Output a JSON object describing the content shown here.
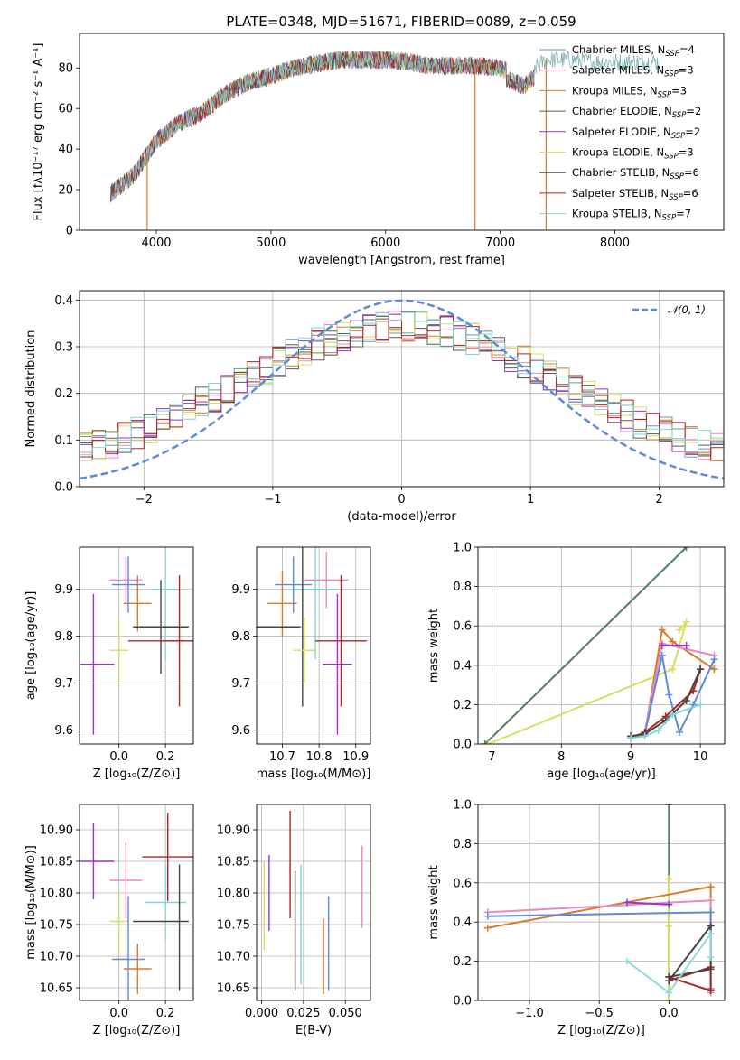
{
  "figure": {
    "title": "PLATE=0348, MJD=51671, FIBERID=0089, z=0.059",
    "colors": [
      "#5f9ea0",
      "#e78ac3",
      "#d97a2a",
      "#4f5f4f",
      "#9932cc",
      "#d4e157",
      "#444444",
      "#b22222",
      "#7fd6d6"
    ]
  },
  "chart_data": [
    {
      "id": "spectrum",
      "type": "line",
      "title": "PLATE=0348, MJD=51671, FIBERID=0089, z=0.059",
      "xlabel": "wavelength [Angstrom, rest frame]",
      "ylabel": "Flux [fλ10⁻¹⁷ erg cm⁻² s⁻¹ A⁻¹]",
      "xlim": [
        3330,
        8950
      ],
      "ylim": [
        0,
        97
      ],
      "xticks": [
        4000,
        5000,
        6000,
        7000,
        8000
      ],
      "yticks": [
        0,
        20,
        40,
        60,
        80
      ],
      "legend_position": "top-right",
      "series": [
        {
          "name": "Chabrier MILES, N_SSP=4",
          "color": "#5f9ea0"
        },
        {
          "name": "Salpeter MILES, N_SSP=3",
          "color": "#e78ac3"
        },
        {
          "name": "Kroupa MILES, N_SSP=3",
          "color": "#d97a2a"
        },
        {
          "name": "Chabrier ELODIE, N_SSP=2",
          "color": "#4f5f4f"
        },
        {
          "name": "Salpeter ELODIE, N_SSP=2",
          "color": "#9932cc"
        },
        {
          "name": "Kroupa ELODIE, N_SSP=3",
          "color": "#d4e157"
        },
        {
          "name": "Chabrier STELIB, N_SSP=6",
          "color": "#444444"
        },
        {
          "name": "Salpeter STELIB, N_SSP=6",
          "color": "#b22222"
        },
        {
          "name": "Kroupa STELIB, N_SSP=7",
          "color": "#7fd6d6"
        }
      ],
      "continuum": {
        "x": [
          3600,
          3800,
          4000,
          4200,
          4400,
          4600,
          4800,
          5000,
          5200,
          5400,
          5600,
          5800,
          6000,
          6200,
          6400,
          6600,
          6800,
          7000,
          7200,
          7400,
          7600,
          7800,
          8000,
          8200,
          8400
        ],
        "y": [
          18,
          27,
          44,
          53,
          58,
          67,
          73,
          76,
          80,
          82,
          84,
          84,
          84,
          83,
          81,
          81,
          81,
          80,
          75,
          84,
          84,
          83,
          83,
          83,
          83
        ]
      },
      "drops": [
        {
          "x": 3920,
          "y_end": 0,
          "color": "#d97a2a"
        },
        {
          "x": 6780,
          "y_end": 0,
          "color": "#d97a2a"
        },
        {
          "x": 7400,
          "y_end": 0,
          "color": "#d97a2a"
        }
      ]
    },
    {
      "id": "residuals",
      "type": "line",
      "xlabel": "(data-model)/error",
      "ylabel": "Normed distribution",
      "xlim": [
        -2.5,
        2.5
      ],
      "ylim": [
        0,
        0.42
      ],
      "xticks": [
        -2,
        -1,
        0,
        1,
        2
      ],
      "yticks": [
        0.0,
        0.1,
        0.2,
        0.3,
        0.4
      ],
      "grid": true,
      "legend_position": "top-right",
      "reference": {
        "name": "N(0,1)",
        "mean": 0,
        "std": 1,
        "color": "#5b8bd8"
      },
      "bin_width": 0.1
    },
    {
      "id": "age-vs-Z",
      "type": "scatter",
      "xlabel": "Z [log₁₀(Z/Z⊙)]",
      "ylabel": "age  [log₁₀(age/yr)]",
      "xlim": [
        -0.17,
        0.32
      ],
      "ylim": [
        9.57,
        9.99
      ],
      "xticks": [
        0.0,
        0.2
      ],
      "yticks": [
        9.6,
        9.7,
        9.8,
        9.9
      ],
      "grid": true,
      "points": [
        {
          "x": 0.03,
          "y": 9.92,
          "xerr": 0.07,
          "yerr": 0.05,
          "color": "#e78ac3"
        },
        {
          "x": 0.08,
          "y": 9.87,
          "xerr": 0.06,
          "yerr": 0.06,
          "color": "#d97a2a"
        },
        {
          "x": 0.04,
          "y": 9.91,
          "xerr": 0.07,
          "yerr": 0.06,
          "color": "#5b8bd8"
        },
        {
          "x": 0.2,
          "y": 9.9,
          "xerr": 0.06,
          "yerr": 0.15,
          "color": "#7fd6d6"
        },
        {
          "x": 0.18,
          "y": 9.82,
          "xerr": 0.12,
          "yerr": 0.1,
          "color": "#444444"
        },
        {
          "x": 0.26,
          "y": 9.79,
          "xerr": 0.06,
          "yerr": 0.14,
          "color": "#b22222"
        },
        {
          "x": 0.16,
          "y": 9.79,
          "xerr": 0.12,
          "yerr": 0.0,
          "color": "#b22222"
        },
        {
          "x": 0.0,
          "y": 9.77,
          "xerr": 0.04,
          "yerr": 0.07,
          "color": "#d4e157"
        },
        {
          "x": -0.11,
          "y": 9.74,
          "xerr": 0.09,
          "yerr": 0.15,
          "color": "#9932cc"
        }
      ]
    },
    {
      "id": "age-vs-mass",
      "type": "scatter",
      "xlabel": "mass [log₁₀(M/M⊙)]",
      "xlim": [
        10.63,
        10.94
      ],
      "ylim": [
        9.57,
        9.99
      ],
      "xticks": [
        10.7,
        10.8,
        10.9
      ],
      "yticks": [
        9.6,
        9.7,
        9.8,
        9.9
      ],
      "grid": true,
      "points": [
        {
          "x": 10.7,
          "y": 9.87,
          "xerr": 0.04,
          "yerr": 0.07,
          "color": "#d97a2a"
        },
        {
          "x": 10.73,
          "y": 9.91,
          "xerr": 0.05,
          "yerr": 0.06,
          "color": "#5b8bd8"
        },
        {
          "x": 10.82,
          "y": 9.92,
          "xerr": 0.06,
          "yerr": 0.06,
          "color": "#e78ac3"
        },
        {
          "x": 10.79,
          "y": 9.9,
          "xerr": 0.06,
          "yerr": 0.15,
          "color": "#7fd6d6"
        },
        {
          "x": 10.69,
          "y": 9.82,
          "xerr": 0.06,
          "yerr": 0.0,
          "color": "#444444"
        },
        {
          "x": 10.755,
          "y": 9.82,
          "xerr": 0.0,
          "yerr": 0.17,
          "color": "#444444"
        },
        {
          "x": 10.86,
          "y": 9.79,
          "xerr": 0.07,
          "yerr": 0.14,
          "color": "#b22222"
        },
        {
          "x": 10.76,
          "y": 9.77,
          "xerr": 0.03,
          "yerr": 0.07,
          "color": "#d4e157"
        },
        {
          "x": 10.85,
          "y": 9.74,
          "xerr": 0.04,
          "yerr": 0.15,
          "color": "#9932cc"
        }
      ]
    },
    {
      "id": "mass-weight-vs-age",
      "type": "line",
      "xlabel": "age  [log₁₀(age/yr)]",
      "ylabel": "mass weight",
      "xlim": [
        6.8,
        10.35
      ],
      "ylim": [
        0,
        1.0
      ],
      "xticks": [
        7,
        8,
        9,
        10
      ],
      "yticks": [
        0.0,
        0.2,
        0.4,
        0.6,
        0.8,
        1.0
      ],
      "grid": true,
      "series": [
        {
          "color": "#4f7f5f",
          "x": [
            6.9,
            9.8
          ],
          "y": [
            0.0,
            1.0
          ]
        },
        {
          "color": "#d4e157",
          "x": [
            6.95,
            9.6,
            9.8,
            9.7
          ],
          "y": [
            0.0,
            0.38,
            0.62,
            0.58
          ]
        },
        {
          "color": "#d97a2a",
          "x": [
            9.0,
            9.2,
            9.45,
            9.6,
            10.2
          ],
          "y": [
            0.04,
            0.05,
            0.58,
            0.52,
            0.38
          ]
        },
        {
          "color": "#e78ac3",
          "x": [
            9.0,
            9.2,
            9.45,
            10.2
          ],
          "y": [
            0.03,
            0.06,
            0.51,
            0.45
          ]
        },
        {
          "color": "#5b8bd8",
          "x": [
            9.0,
            9.2,
            9.45,
            9.55,
            9.7,
            9.9,
            10.2
          ],
          "y": [
            0.03,
            0.05,
            0.45,
            0.25,
            0.06,
            0.2,
            0.43
          ]
        },
        {
          "color": "#b22222",
          "x": [
            9.0,
            9.2,
            9.5,
            9.9,
            10.0
          ],
          "y": [
            0.03,
            0.06,
            0.14,
            0.27,
            0.38
          ]
        },
        {
          "color": "#444444",
          "x": [
            9.0,
            9.2,
            9.5,
            9.8,
            10.0
          ],
          "y": [
            0.04,
            0.05,
            0.12,
            0.22,
            0.38
          ]
        },
        {
          "color": "#7fd6d6",
          "x": [
            9.0,
            9.2,
            9.4,
            9.6,
            10.0
          ],
          "y": [
            0.03,
            0.04,
            0.07,
            0.15,
            0.2
          ]
        },
        {
          "color": "#9932cc",
          "x": [
            9.45,
            9.8
          ],
          "y": [
            0.5,
            0.5
          ]
        }
      ]
    },
    {
      "id": "mass-vs-Z",
      "type": "scatter",
      "xlabel": "Z [log₁₀(Z/Z⊙)]",
      "ylabel": "mass [log₁₀(M/M⊙)]",
      "xlim": [
        -0.17,
        0.32
      ],
      "ylim": [
        10.63,
        10.94
      ],
      "xticks": [
        0.0,
        0.2
      ],
      "yticks": [
        10.65,
        10.7,
        10.75,
        10.8,
        10.85,
        10.9
      ],
      "grid": true,
      "points": [
        {
          "x": -0.11,
          "y": 10.85,
          "xerr": 0.09,
          "yerr": 0.06,
          "color": "#9932cc"
        },
        {
          "x": 0.03,
          "y": 10.82,
          "xerr": 0.07,
          "yerr": 0.06,
          "color": "#e78ac3"
        },
        {
          "x": 0.0,
          "y": 10.755,
          "xerr": 0.04,
          "yerr": 0.05,
          "color": "#d4e157"
        },
        {
          "x": 0.04,
          "y": 10.695,
          "xerr": 0.07,
          "yerr": 0.1,
          "color": "#5b8bd8"
        },
        {
          "x": 0.08,
          "y": 10.68,
          "xerr": 0.06,
          "yerr": 0.04,
          "color": "#d97a2a"
        },
        {
          "x": 0.2,
          "y": 10.785,
          "xerr": 0.09,
          "yerr": 0.06,
          "color": "#7fd6d6"
        },
        {
          "x": 0.18,
          "y": 10.755,
          "xerr": 0.12,
          "yerr": 0.0,
          "color": "#444444"
        },
        {
          "x": 0.26,
          "y": 10.745,
          "xerr": 0.0,
          "yerr": 0.1,
          "color": "#444444"
        },
        {
          "x": 0.21,
          "y": 10.857,
          "xerr": 0.11,
          "yerr": 0.07,
          "color": "#b22222"
        }
      ]
    },
    {
      "id": "mass-vs-EBV",
      "type": "scatter",
      "xlabel": "E(B-V)",
      "xlim": [
        -0.003,
        0.065
      ],
      "ylim": [
        10.63,
        10.94
      ],
      "xticks": [
        0.0,
        0.025,
        0.05
      ],
      "yticks": [
        10.65,
        10.7,
        10.75,
        10.8,
        10.85,
        10.9
      ],
      "grid": true,
      "points": [
        {
          "x": 0.0015,
          "y": 10.78,
          "yerr": 0.07,
          "color": "#d4e157"
        },
        {
          "x": 0.0045,
          "y": 10.8,
          "yerr": 0.06,
          "color": "#9932cc"
        },
        {
          "x": 0.017,
          "y": 10.845,
          "yerr": 0.085,
          "color": "#b22222"
        },
        {
          "x": 0.02,
          "y": 10.74,
          "yerr": 0.095,
          "color": "#444444"
        },
        {
          "x": 0.0235,
          "y": 10.75,
          "yerr": 0.095,
          "color": "#7fd6d6"
        },
        {
          "x": 0.037,
          "y": 10.7,
          "yerr": 0.06,
          "color": "#d97a2a"
        },
        {
          "x": 0.04,
          "y": 10.72,
          "yerr": 0.075,
          "color": "#5b8bd8"
        },
        {
          "x": 0.06,
          "y": 10.81,
          "yerr": 0.065,
          "color": "#e78ac3"
        }
      ]
    },
    {
      "id": "mass-weight-vs-Z",
      "type": "line",
      "xlabel": "Z [log₁₀(Z/Z⊙)]",
      "ylabel": "mass weight",
      "xlim": [
        -1.37,
        0.4
      ],
      "ylim": [
        0,
        1.0
      ],
      "xticks": [
        -1.0,
        -0.5,
        0.0
      ],
      "yticks": [
        0.0,
        0.2,
        0.4,
        0.6,
        0.8,
        1.0
      ],
      "grid": true,
      "series": [
        {
          "color": "#4f7f5f",
          "x": [
            0.0,
            0.0
          ],
          "y": [
            0.0,
            1.0
          ]
        },
        {
          "color": "#d4e157",
          "x": [
            0.0,
            0.0,
            0.0
          ],
          "y": [
            0.0,
            0.38,
            0.62
          ]
        },
        {
          "color": "#d97a2a",
          "x": [
            -1.3,
            0.3,
            0.3
          ],
          "y": [
            0.37,
            0.58,
            0.04
          ]
        },
        {
          "color": "#e78ac3",
          "x": [
            -1.3,
            0.3,
            0.3
          ],
          "y": [
            0.45,
            0.51,
            0.04
          ]
        },
        {
          "color": "#5b8bd8",
          "x": [
            -1.3,
            0.3,
            0.3
          ],
          "y": [
            0.43,
            0.45,
            0.06
          ]
        },
        {
          "color": "#9932cc",
          "x": [
            -0.3,
            0.0
          ],
          "y": [
            0.5,
            0.49
          ]
        },
        {
          "color": "#b22222",
          "x": [
            0.0,
            0.3,
            0.3,
            0.0
          ],
          "y": [
            0.1,
            0.17,
            0.05,
            0.12
          ]
        },
        {
          "color": "#444444",
          "x": [
            0.0,
            0.3,
            0.3,
            0.0
          ],
          "y": [
            0.12,
            0.16,
            0.38,
            0.1
          ]
        },
        {
          "color": "#8fdbe0",
          "x": [
            -0.3,
            0.0,
            0.3,
            0.3
          ],
          "y": [
            0.2,
            0.04,
            0.34,
            0.22
          ]
        }
      ]
    }
  ]
}
